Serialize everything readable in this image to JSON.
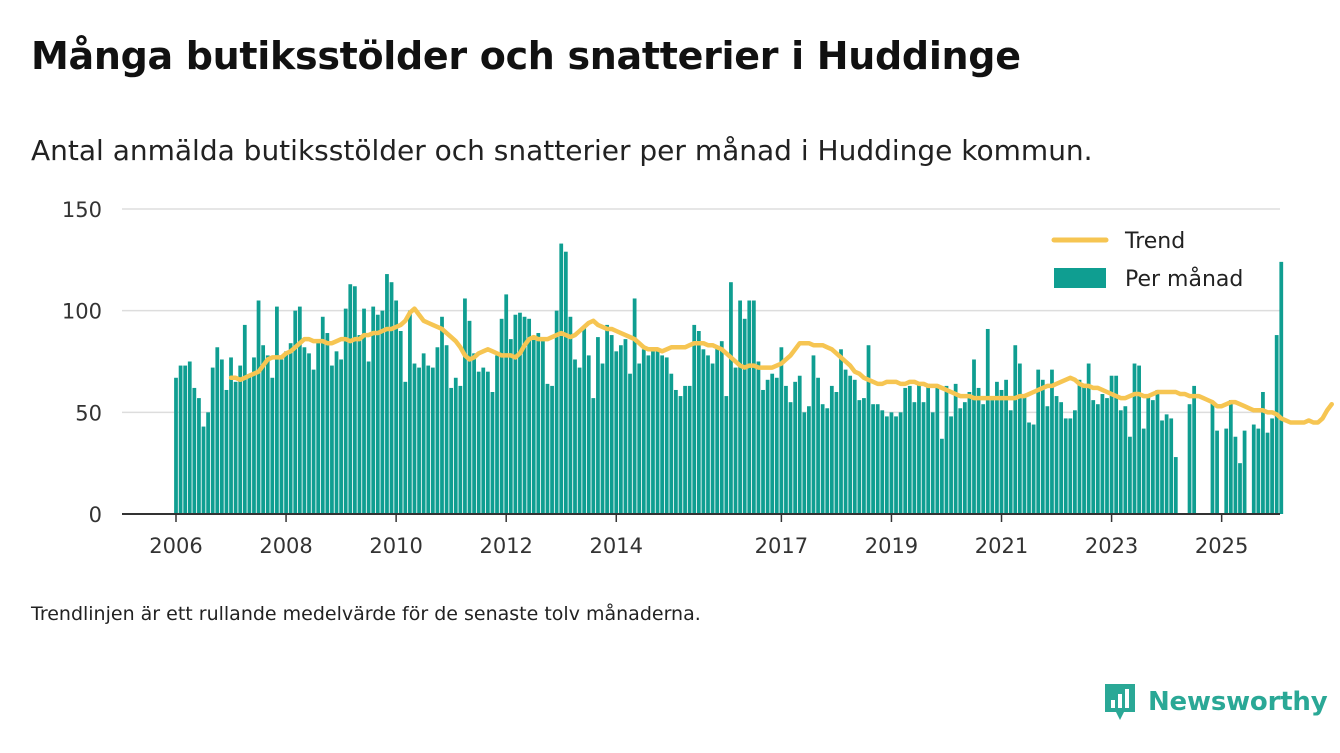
{
  "title": "Många butiksstölder och snatterier i Huddinge",
  "subtitle": "Antal anmälda butiksstölder och snatterier per månad i Huddinge kommun.",
  "footnote": "Trendlinjen är ett rullande medelvärde för de senaste tolv månaderna.",
  "brand": {
    "name": "Newsworthy",
    "icon": "newsworthy-logo-icon"
  },
  "colors": {
    "bars": "#0f9e91",
    "trend": "#f6c552",
    "grid": "#dddddd",
    "axis": "#333333",
    "brand": "#2aa896"
  },
  "chart_data": {
    "type": "bar",
    "title": "",
    "xlabel": "",
    "ylabel": "",
    "ylim": [
      0,
      150
    ],
    "yticks": [
      0,
      50,
      100,
      150
    ],
    "xticks": [
      "2006",
      "2008",
      "2010",
      "2012",
      "2014",
      "2017",
      "2019",
      "2021",
      "2023",
      "2025"
    ],
    "xtick_months": [
      0,
      24,
      48,
      72,
      96,
      132,
      156,
      180,
      204,
      228
    ],
    "x_start": "2006-01",
    "x_end": "2025-03",
    "grid": true,
    "legend_position": "top-right",
    "series": [
      {
        "name": "Per månad",
        "type": "bar",
        "values": [
          67,
          73,
          73,
          75,
          62,
          57,
          43,
          50,
          72,
          82,
          76,
          61,
          77,
          65,
          73,
          93,
          68,
          77,
          105,
          83,
          78,
          67,
          102,
          76,
          80,
          84,
          100,
          102,
          82,
          79,
          71,
          85,
          97,
          89,
          73,
          80,
          76,
          101,
          113,
          112,
          88,
          101,
          75,
          102,
          98,
          100,
          118,
          114,
          105,
          90,
          65,
          100,
          74,
          72,
          79,
          73,
          72,
          82,
          97,
          83,
          62,
          67,
          63,
          106,
          95,
          79,
          70,
          72,
          70,
          60,
          78,
          96,
          108,
          86,
          98,
          99,
          97,
          96,
          86,
          89,
          86,
          64,
          63,
          100,
          133,
          129,
          97,
          76,
          72,
          92,
          78,
          57,
          87,
          74,
          93,
          88,
          80,
          83,
          86,
          69,
          106,
          74,
          81,
          78,
          80,
          80,
          78,
          77,
          69,
          61,
          58,
          63,
          63,
          93,
          90,
          81,
          78,
          74,
          82,
          85,
          58,
          114,
          72,
          105,
          96,
          105,
          105,
          75,
          61,
          66,
          69,
          67,
          82,
          63,
          55,
          65,
          68,
          50,
          53,
          78,
          67,
          54,
          52,
          63,
          60,
          81,
          71,
          68,
          66,
          56,
          57,
          83,
          54,
          54,
          51,
          48,
          50,
          48,
          50,
          62,
          63,
          55,
          64,
          55,
          64,
          50,
          62,
          37,
          63,
          48,
          64,
          52,
          55,
          60,
          76,
          62,
          54,
          91,
          56,
          65,
          61,
          66,
          51,
          83,
          74,
          58,
          45,
          44,
          71,
          66,
          53,
          71,
          58,
          55,
          47,
          47,
          51,
          66,
          64,
          74,
          56,
          54,
          59,
          57,
          68,
          68,
          51,
          53,
          38,
          74,
          73,
          42,
          58,
          56,
          61,
          46,
          49,
          47,
          28,
          0,
          0,
          54,
          63,
          0,
          0,
          0,
          55,
          41,
          0,
          42,
          56,
          38,
          25,
          41,
          0,
          44,
          42,
          60,
          40,
          47,
          88,
          124
        ],
        "value_labels": false
      },
      {
        "name": "Trend",
        "type": "line",
        "start_month": 12,
        "values": [
          67,
          67,
          66,
          67,
          68,
          69,
          70,
          73,
          76,
          77,
          77,
          77,
          79,
          80,
          82,
          84,
          86,
          86,
          85,
          85,
          85,
          84,
          84,
          85,
          86,
          86,
          85,
          86,
          86,
          88,
          88,
          89,
          89,
          90,
          91,
          91,
          92,
          93,
          95,
          99,
          101,
          98,
          95,
          94,
          93,
          92,
          91,
          89,
          87,
          85,
          82,
          78,
          76,
          77,
          79,
          80,
          81,
          80,
          79,
          78,
          78,
          78,
          77,
          79,
          83,
          86,
          87,
          86,
          86,
          86,
          87,
          88,
          89,
          88,
          87,
          88,
          90,
          92,
          94,
          95,
          93,
          92,
          91,
          91,
          90,
          89,
          88,
          87,
          86,
          84,
          82,
          81,
          81,
          81,
          80,
          81,
          82,
          82,
          82,
          82,
          83,
          84,
          84,
          84,
          83,
          83,
          82,
          81,
          79,
          77,
          75,
          73,
          72,
          73,
          73,
          72,
          72,
          72,
          72,
          73,
          74,
          76,
          78,
          81,
          84,
          84,
          84,
          83,
          83,
          83,
          82,
          81,
          79,
          77,
          75,
          73,
          70,
          69,
          67,
          66,
          65,
          64,
          64,
          65,
          65,
          65,
          64,
          64,
          65,
          65,
          64,
          64,
          63,
          63,
          63,
          62,
          61,
          60,
          59,
          58,
          58,
          58,
          57,
          57,
          57,
          57,
          57,
          57,
          57,
          57,
          57,
          57,
          58,
          58,
          59,
          60,
          61,
          62,
          63,
          63,
          64,
          65,
          66,
          67,
          66,
          64,
          63,
          63,
          62,
          62,
          61,
          60,
          59,
          58,
          57,
          57,
          58,
          59,
          59,
          58,
          58,
          59,
          60,
          60,
          60,
          60,
          60,
          59,
          59,
          58,
          58,
          58,
          57,
          56,
          55,
          53,
          53,
          54,
          55,
          55,
          54,
          53,
          52,
          51,
          51,
          51,
          50,
          50,
          49,
          47,
          46,
          45,
          45,
          45,
          45,
          46,
          45,
          45,
          47,
          51,
          54
        ]
      }
    ]
  }
}
